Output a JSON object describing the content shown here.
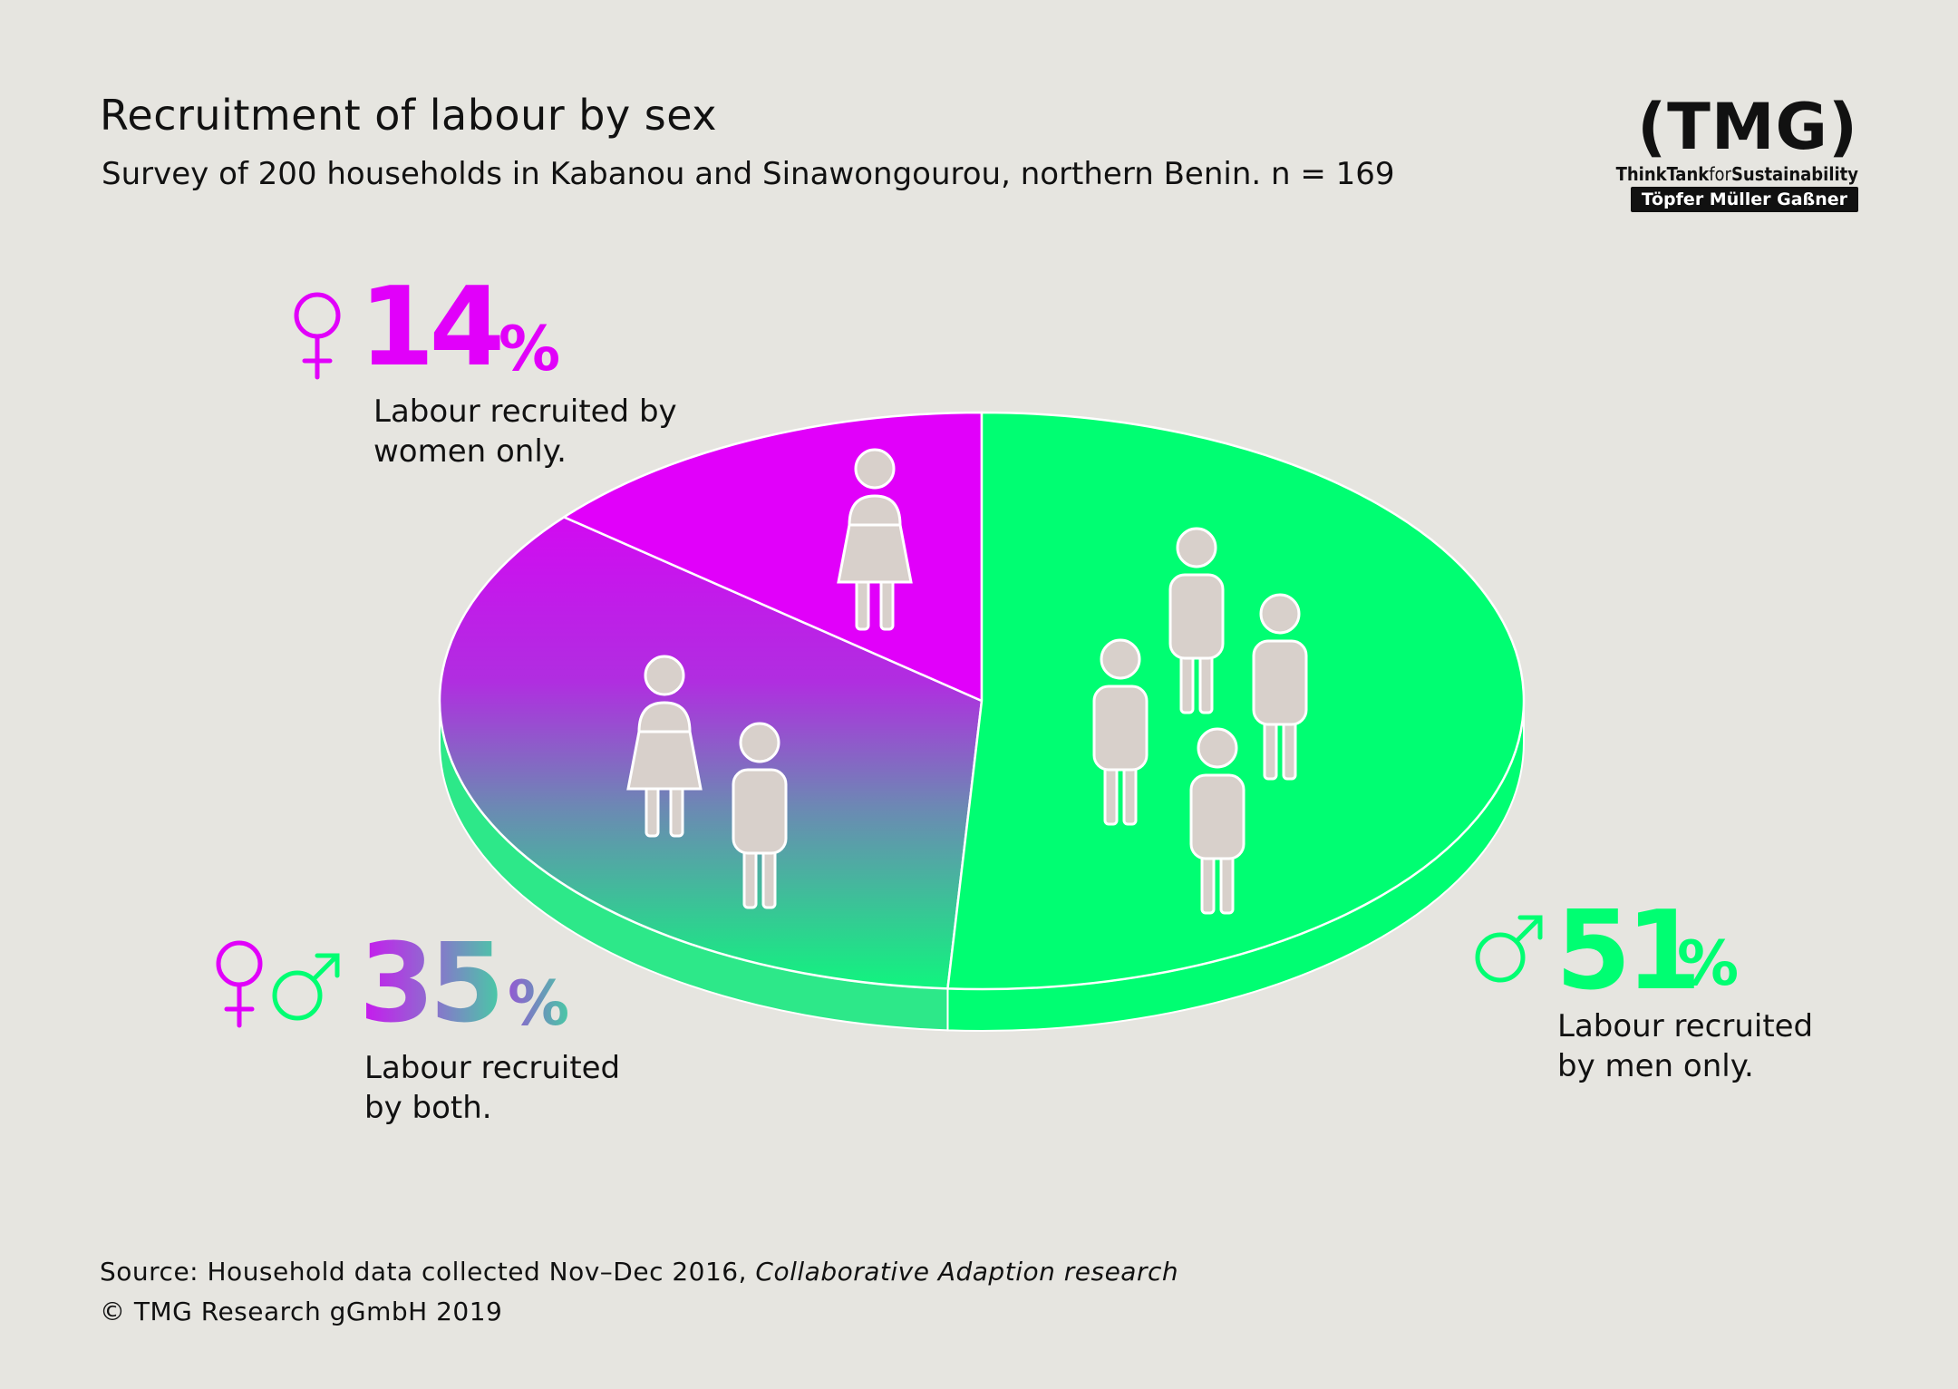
{
  "title": "Recruitment of labour by sex",
  "subtitle": "Survey of 200 households in Kabanou and Sinawongourou, northern Benin. n = 169",
  "logo": {
    "mark": "(TMG)",
    "tagline_1": "ThinkTank",
    "tagline_2": "for",
    "tagline_3": "Sustainability",
    "names": "Töpfer Müller Gaßner"
  },
  "colors": {
    "background": "#e6e5e0",
    "women": "#e100fa",
    "men": "#00fe72",
    "both_top": "#cc14e8",
    "both_bottom": "#1fe88b",
    "figure_fill": "#d8d0cb",
    "figure_stroke": "#ffffff"
  },
  "chart_data": {
    "type": "pie",
    "title": "Recruitment of labour by sex",
    "unit": "%",
    "slices": [
      {
        "key": "women",
        "label": "Labour recruited by women only.",
        "value": 14,
        "symbols": [
          "female-symbol"
        ]
      },
      {
        "key": "both",
        "label": "Labour recruited by both.",
        "value": 35,
        "symbols": [
          "female-symbol",
          "male-symbol"
        ]
      },
      {
        "key": "men",
        "label": "Labour recruited by men only.",
        "value": 51,
        "symbols": [
          "male-symbol"
        ]
      }
    ]
  },
  "callouts": {
    "women": {
      "value": "14",
      "sign": "%",
      "desc": "Labour recruited by women only.",
      "line1": "Labour recruited by",
      "line2": "women only."
    },
    "both": {
      "value": "35",
      "sign": "%",
      "desc": "Labour recruited by both.",
      "line1": "Labour recruited",
      "line2": "by both."
    },
    "men": {
      "value": "51",
      "sign": "%",
      "desc": "Labour recruited by men only.",
      "line1": "Labour recruited",
      "line2": "by men only."
    }
  },
  "source": {
    "prefix": "Source: Household data collected Nov–Dec 2016, ",
    "italic": "Collaborative Adaption research"
  },
  "copyright": "© TMG Research gGmbH 2019"
}
